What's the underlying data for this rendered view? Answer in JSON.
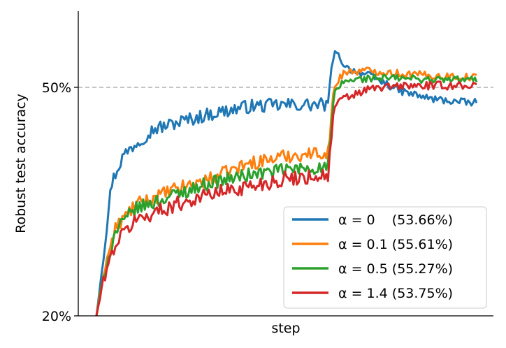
{
  "chart_data": {
    "type": "line",
    "title": "",
    "xlabel": "step",
    "ylabel": "Robust test accuracy",
    "ylim": [
      20,
      60
    ],
    "xlim": [
      0,
      1
    ],
    "yticks": [
      {
        "value": 20,
        "label": "20%"
      },
      {
        "value": 50,
        "label": "50%"
      }
    ],
    "x_tick_labels_visible": false,
    "reference_line": {
      "y": 50,
      "style": "dashed",
      "color": "#b0b0b0"
    },
    "grid": false,
    "legend": "bottom-right",
    "series": [
      {
        "name": "α = 0    (53.66%)",
        "color": "#1f77b4",
        "anchors": [
          [
            0.0,
            20.0
          ],
          [
            0.02,
            28.5
          ],
          [
            0.04,
            37.5
          ],
          [
            0.07,
            41.0
          ],
          [
            0.1,
            42.5
          ],
          [
            0.15,
            44.5
          ],
          [
            0.22,
            45.5
          ],
          [
            0.3,
            46.5
          ],
          [
            0.4,
            47.5
          ],
          [
            0.5,
            47.7
          ],
          [
            0.61,
            47.7
          ],
          [
            0.622,
            54.0
          ],
          [
            0.63,
            54.5
          ],
          [
            0.66,
            52.5
          ],
          [
            0.72,
            51.5
          ],
          [
            0.8,
            49.5
          ],
          [
            0.88,
            48.5
          ],
          [
            0.97,
            48.0
          ],
          [
            1.0,
            48.0
          ]
        ],
        "noise": 0.9
      },
      {
        "name": "α = 0.1 (55.61%)",
        "color": "#ff7f0e",
        "anchors": [
          [
            0.0,
            20.0
          ],
          [
            0.02,
            26.0
          ],
          [
            0.05,
            31.5
          ],
          [
            0.1,
            34.5
          ],
          [
            0.2,
            36.5
          ],
          [
            0.3,
            38.0
          ],
          [
            0.4,
            40.0
          ],
          [
            0.5,
            41.0
          ],
          [
            0.61,
            41.5
          ],
          [
            0.625,
            50.0
          ],
          [
            0.65,
            52.0
          ],
          [
            0.72,
            52.2
          ],
          [
            0.8,
            51.8
          ],
          [
            0.9,
            51.5
          ],
          [
            1.0,
            51.3
          ]
        ],
        "noise": 0.9
      },
      {
        "name": "α = 0.5 (55.27%)",
        "color": "#2ca02c",
        "anchors": [
          [
            0.0,
            20.0
          ],
          [
            0.02,
            25.5
          ],
          [
            0.05,
            31.0
          ],
          [
            0.1,
            34.0
          ],
          [
            0.2,
            35.8
          ],
          [
            0.3,
            37.5
          ],
          [
            0.4,
            38.5
          ],
          [
            0.5,
            39.2
          ],
          [
            0.61,
            39.5
          ],
          [
            0.625,
            49.0
          ],
          [
            0.65,
            50.8
          ],
          [
            0.72,
            51.2
          ],
          [
            0.8,
            51.2
          ],
          [
            0.9,
            51.0
          ],
          [
            1.0,
            51.0
          ]
        ],
        "noise": 0.9
      },
      {
        "name": "α = 1.4 (53.75%)",
        "color": "#d62728",
        "anchors": [
          [
            0.0,
            20.0
          ],
          [
            0.02,
            25.0
          ],
          [
            0.05,
            29.5
          ],
          [
            0.1,
            32.5
          ],
          [
            0.2,
            34.5
          ],
          [
            0.3,
            36.0
          ],
          [
            0.4,
            37.0
          ],
          [
            0.5,
            38.0
          ],
          [
            0.61,
            38.5
          ],
          [
            0.625,
            47.5
          ],
          [
            0.65,
            48.5
          ],
          [
            0.72,
            49.8
          ],
          [
            0.8,
            50.2
          ],
          [
            0.9,
            50.2
          ],
          [
            1.0,
            50.3
          ]
        ],
        "noise": 1.0
      }
    ]
  }
}
